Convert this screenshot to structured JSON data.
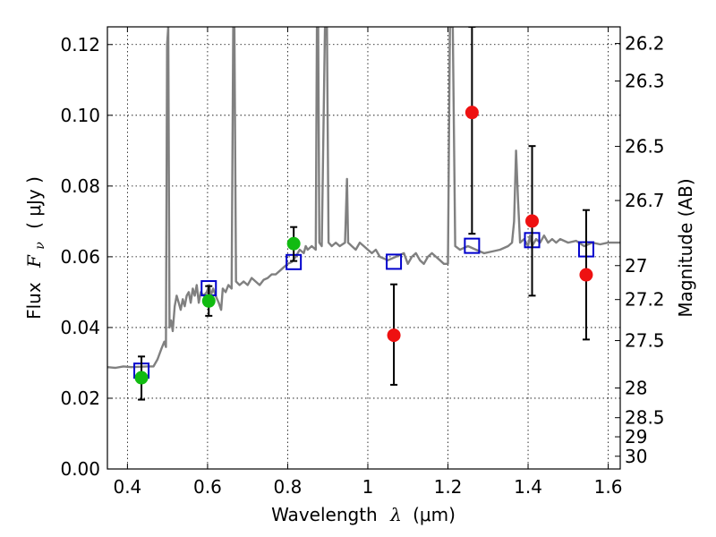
{
  "chart_data": {
    "type": "scatter",
    "xlabel": "Wavelength",
    "xlabel_symbol": "λ",
    "xlabel_unit": "(μm)",
    "ylabel": "Flux",
    "ylabel_symbol": "F",
    "ylabel_subscript": "ν",
    "ylabel_unit": "( μJy )",
    "y2label": "Magnitude (AB)",
    "xlim": [
      0.35,
      1.63
    ],
    "ylim": [
      0.0,
      0.125
    ],
    "x_ticks": [
      0.4,
      0.6,
      0.8,
      1.0,
      1.2,
      1.4,
      1.6
    ],
    "x_tick_labels": [
      "0.4",
      "0.6",
      "0.8",
      "1",
      "1.2",
      "1.4",
      "1.6"
    ],
    "y_ticks": [
      0.0,
      0.02,
      0.04,
      0.06,
      0.08,
      0.1,
      0.12
    ],
    "y_tick_labels": [
      "0.00",
      "0.02",
      "0.04",
      "0.06",
      "0.08",
      "0.10",
      "0.12"
    ],
    "y2_ticks": [
      {
        "label": "26.2",
        "flux": 0.1203
      },
      {
        "label": "26.3",
        "flux": 0.1097
      },
      {
        "label": "26.5",
        "flux": 0.0912
      },
      {
        "label": "26.7",
        "flux": 0.0759
      },
      {
        "label": "27",
        "flux": 0.0575
      },
      {
        "label": "27.2",
        "flux": 0.0479
      },
      {
        "label": "27.5",
        "flux": 0.0363
      },
      {
        "label": "28",
        "flux": 0.0229
      },
      {
        "label": "28.5",
        "flux": 0.0145
      },
      {
        "label": "29",
        "flux": 0.0091
      },
      {
        "label": "30",
        "flux": 0.0036
      }
    ],
    "grid": true,
    "colors": {
      "spectrum": "#808080",
      "model_box": "#0000cc",
      "optical_point": "#11bb11",
      "nir_point": "#ee1111",
      "errorbar": "#000000"
    },
    "series": [
      {
        "name": "model spectrum",
        "kind": "line",
        "points": [
          [
            0.35,
            0.0288
          ],
          [
            0.37,
            0.0286
          ],
          [
            0.39,
            0.029
          ],
          [
            0.41,
            0.0288
          ],
          [
            0.43,
            0.0289
          ],
          [
            0.45,
            0.029
          ],
          [
            0.465,
            0.029
          ],
          [
            0.475,
            0.031
          ],
          [
            0.485,
            0.034
          ],
          [
            0.492,
            0.036
          ],
          [
            0.496,
            0.0345
          ],
          [
            0.499,
            0.12
          ],
          [
            0.502,
            0.125
          ],
          [
            0.505,
            0.04
          ],
          [
            0.509,
            0.042
          ],
          [
            0.513,
            0.039
          ],
          [
            0.518,
            0.046
          ],
          [
            0.523,
            0.049
          ],
          [
            0.528,
            0.047
          ],
          [
            0.533,
            0.045
          ],
          [
            0.538,
            0.048
          ],
          [
            0.543,
            0.046
          ],
          [
            0.548,
            0.049
          ],
          [
            0.553,
            0.05
          ],
          [
            0.558,
            0.047
          ],
          [
            0.563,
            0.051
          ],
          [
            0.568,
            0.049
          ],
          [
            0.573,
            0.052
          ],
          [
            0.578,
            0.047
          ],
          [
            0.583,
            0.05
          ],
          [
            0.59,
            0.049
          ],
          [
            0.598,
            0.05
          ],
          [
            0.604,
            0.052
          ],
          [
            0.608,
            0.049
          ],
          [
            0.614,
            0.051
          ],
          [
            0.62,
            0.049
          ],
          [
            0.628,
            0.047
          ],
          [
            0.634,
            0.045
          ],
          [
            0.638,
            0.051
          ],
          [
            0.645,
            0.05
          ],
          [
            0.652,
            0.052
          ],
          [
            0.66,
            0.051
          ],
          [
            0.664,
            0.125
          ],
          [
            0.667,
            0.125
          ],
          [
            0.671,
            0.053
          ],
          [
            0.68,
            0.052
          ],
          [
            0.69,
            0.053
          ],
          [
            0.7,
            0.052
          ],
          [
            0.71,
            0.054
          ],
          [
            0.72,
            0.053
          ],
          [
            0.73,
            0.052
          ],
          [
            0.74,
            0.0535
          ],
          [
            0.75,
            0.054
          ],
          [
            0.76,
            0.055
          ],
          [
            0.77,
            0.055
          ],
          [
            0.78,
            0.056
          ],
          [
            0.79,
            0.057
          ],
          [
            0.8,
            0.058
          ],
          [
            0.81,
            0.0585
          ],
          [
            0.82,
            0.06
          ],
          [
            0.83,
            0.062
          ],
          [
            0.84,
            0.061
          ],
          [
            0.845,
            0.063
          ],
          [
            0.85,
            0.062
          ],
          [
            0.86,
            0.063
          ],
          [
            0.87,
            0.062
          ],
          [
            0.873,
            0.125
          ],
          [
            0.876,
            0.125
          ],
          [
            0.879,
            0.064
          ],
          [
            0.885,
            0.063
          ],
          [
            0.893,
            0.125
          ],
          [
            0.898,
            0.125
          ],
          [
            0.902,
            0.064
          ],
          [
            0.91,
            0.063
          ],
          [
            0.92,
            0.064
          ],
          [
            0.93,
            0.063
          ],
          [
            0.943,
            0.064
          ],
          [
            0.948,
            0.082
          ],
          [
            0.951,
            0.064
          ],
          [
            0.96,
            0.063
          ],
          [
            0.97,
            0.062
          ],
          [
            0.98,
            0.064
          ],
          [
            0.99,
            0.063
          ],
          [
            1.0,
            0.062
          ],
          [
            1.01,
            0.061
          ],
          [
            1.02,
            0.062
          ],
          [
            1.03,
            0.06
          ],
          [
            1.05,
            0.059
          ],
          [
            1.07,
            0.06
          ],
          [
            1.09,
            0.061
          ],
          [
            1.1,
            0.058
          ],
          [
            1.11,
            0.06
          ],
          [
            1.12,
            0.061
          ],
          [
            1.13,
            0.059
          ],
          [
            1.14,
            0.058
          ],
          [
            1.15,
            0.06
          ],
          [
            1.16,
            0.061
          ],
          [
            1.17,
            0.06
          ],
          [
            1.18,
            0.059
          ],
          [
            1.19,
            0.058
          ],
          [
            1.2,
            0.058
          ],
          [
            1.205,
            0.125
          ],
          [
            1.212,
            0.125
          ],
          [
            1.218,
            0.063
          ],
          [
            1.23,
            0.062
          ],
          [
            1.25,
            0.063
          ],
          [
            1.27,
            0.062
          ],
          [
            1.29,
            0.061
          ],
          [
            1.31,
            0.0615
          ],
          [
            1.33,
            0.062
          ],
          [
            1.35,
            0.063
          ],
          [
            1.36,
            0.064
          ],
          [
            1.365,
            0.07
          ],
          [
            1.37,
            0.09
          ],
          [
            1.375,
            0.076
          ],
          [
            1.38,
            0.064
          ],
          [
            1.39,
            0.065
          ],
          [
            1.4,
            0.063
          ],
          [
            1.405,
            0.066
          ],
          [
            1.41,
            0.063
          ],
          [
            1.42,
            0.065
          ],
          [
            1.43,
            0.064
          ],
          [
            1.44,
            0.066
          ],
          [
            1.45,
            0.064
          ],
          [
            1.46,
            0.065
          ],
          [
            1.47,
            0.064
          ],
          [
            1.48,
            0.065
          ],
          [
            1.5,
            0.064
          ],
          [
            1.52,
            0.0645
          ],
          [
            1.54,
            0.063
          ],
          [
            1.56,
            0.064
          ],
          [
            1.58,
            0.0635
          ],
          [
            1.6,
            0.064
          ],
          [
            1.63,
            0.064
          ]
        ]
      },
      {
        "name": "model photometry",
        "kind": "open-square",
        "points": [
          [
            0.435,
            0.0278
          ],
          [
            0.603,
            0.0511
          ],
          [
            0.815,
            0.0585
          ],
          [
            1.065,
            0.0586
          ],
          [
            1.26,
            0.0631
          ],
          [
            1.41,
            0.0647
          ],
          [
            1.545,
            0.0621
          ]
        ]
      },
      {
        "name": "optical photometry",
        "kind": "filled-circle",
        "points": [
          {
            "x": 0.435,
            "y": 0.0258,
            "yerr_low": 0.0196,
            "yerr_high": 0.0318
          },
          {
            "x": 0.603,
            "y": 0.0475,
            "yerr_low": 0.0433,
            "yerr_high": 0.0517
          },
          {
            "x": 0.815,
            "y": 0.0637,
            "yerr_low": 0.0588,
            "yerr_high": 0.0684
          }
        ]
      },
      {
        "name": "near-infrared photometry",
        "kind": "filled-circle",
        "points": [
          {
            "x": 1.065,
            "y": 0.0378,
            "yerr_low": 0.0238,
            "yerr_high": 0.0522
          },
          {
            "x": 1.26,
            "y": 0.1008,
            "yerr_low": 0.0665,
            "yerr_high": 0.125
          },
          {
            "x": 1.41,
            "y": 0.0701,
            "yerr_low": 0.049,
            "yerr_high": 0.0913
          },
          {
            "x": 1.545,
            "y": 0.0549,
            "yerr_low": 0.0366,
            "yerr_high": 0.0732
          }
        ]
      }
    ]
  }
}
